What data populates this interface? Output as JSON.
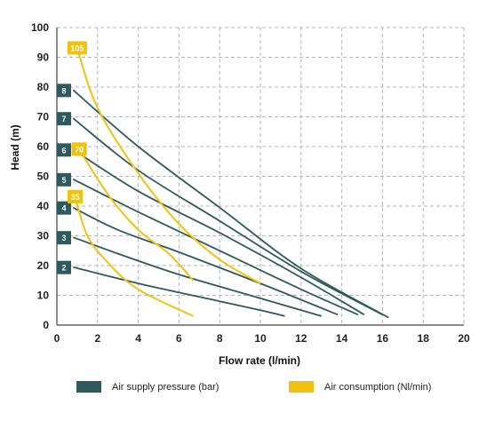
{
  "colors": {
    "pressure": "#2f5a5d",
    "consumption": "#f0c20f",
    "grid": "#b5b5b5"
  },
  "legend": {
    "pressure_label": "Air supply pressure (bar)",
    "consumption_label": "Air consumption (Nl/min)"
  },
  "chart_data": {
    "type": "line",
    "xlabel": "Flow rate (l/min)",
    "ylabel": "Head (m)",
    "xlim": [
      0,
      20
    ],
    "ylim": [
      0,
      100
    ],
    "xticks": [
      0,
      2,
      4,
      6,
      8,
      10,
      12,
      14,
      16,
      18,
      20
    ],
    "yticks": [
      0,
      10,
      20,
      30,
      40,
      50,
      60,
      70,
      80,
      90,
      100
    ],
    "grid": true,
    "legend_position": "bottom",
    "pressure_curves": [
      {
        "label": "2",
        "points": [
          [
            0.8,
            19.5
          ],
          [
            4,
            14
          ],
          [
            8,
            8
          ],
          [
            10,
            5
          ],
          [
            11.2,
            3
          ]
        ]
      },
      {
        "label": "3",
        "points": [
          [
            0.8,
            29.5
          ],
          [
            3,
            24
          ],
          [
            6,
            17
          ],
          [
            10,
            9
          ],
          [
            13,
            3
          ]
        ]
      },
      {
        "label": "4",
        "points": [
          [
            0.8,
            39.5
          ],
          [
            3,
            32
          ],
          [
            6,
            24.5
          ],
          [
            10,
            14
          ],
          [
            13.8,
            3.5
          ]
        ]
      },
      {
        "label": "5",
        "points": [
          [
            0.8,
            49
          ],
          [
            4,
            38
          ],
          [
            8,
            25
          ],
          [
            12,
            12
          ],
          [
            14.8,
            3.5
          ]
        ]
      },
      {
        "label": "6",
        "points": [
          [
            0.8,
            59
          ],
          [
            4,
            45
          ],
          [
            8,
            31
          ],
          [
            12,
            16
          ],
          [
            15.1,
            3.5
          ]
        ]
      },
      {
        "label": "7",
        "points": [
          [
            0.8,
            69.5
          ],
          [
            4,
            52
          ],
          [
            8,
            35
          ],
          [
            12,
            18
          ],
          [
            16.0,
            3.5
          ]
        ]
      },
      {
        "label": "8",
        "points": [
          [
            0.8,
            79
          ],
          [
            4,
            60
          ],
          [
            8,
            39.5
          ],
          [
            12,
            19
          ],
          [
            16.3,
            2.5
          ]
        ]
      }
    ],
    "consumption_curves": [
      {
        "label": "35",
        "points": [
          [
            0.9,
            43
          ],
          [
            1.5,
            30
          ],
          [
            2.5,
            21
          ],
          [
            4,
            12
          ],
          [
            6.7,
            3
          ]
        ]
      },
      {
        "label": "70",
        "points": [
          [
            1.1,
            59
          ],
          [
            2.5,
            44
          ],
          [
            4,
            32
          ],
          [
            5.5,
            24
          ],
          [
            6.7,
            15
          ]
        ]
      },
      {
        "label": "105",
        "points": [
          [
            1.0,
            93
          ],
          [
            2,
            73
          ],
          [
            4,
            51
          ],
          [
            6,
            34
          ],
          [
            8,
            22
          ],
          [
            10,
            14
          ]
        ]
      }
    ]
  }
}
